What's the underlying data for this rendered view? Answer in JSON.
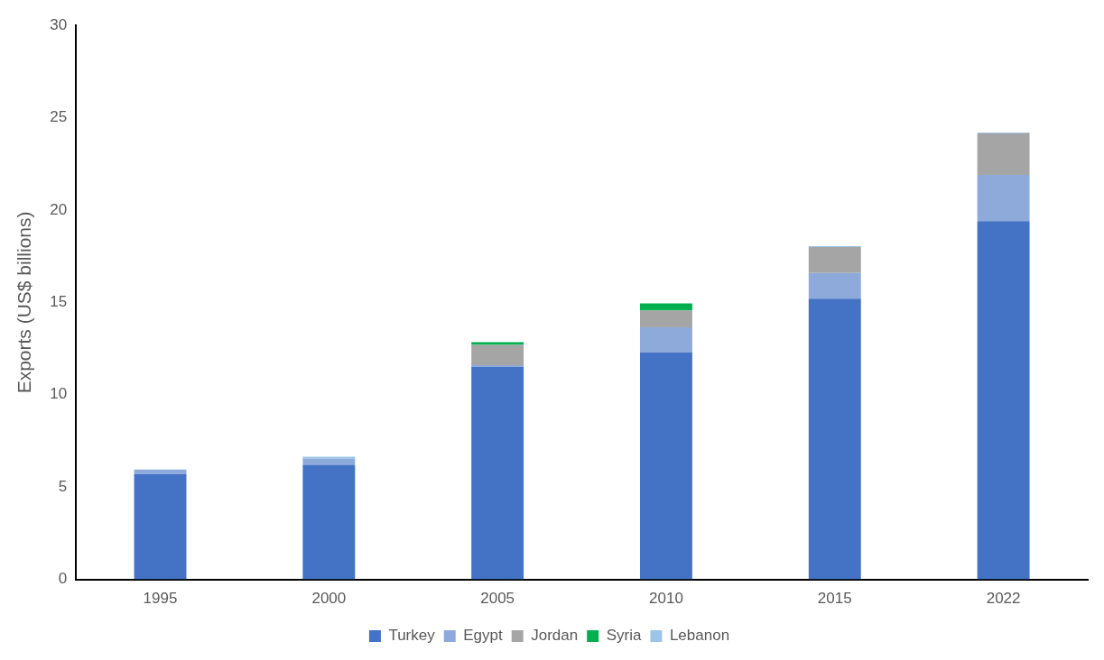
{
  "chart_data": {
    "type": "bar",
    "stacked": true,
    "ylabel": "Exports (US$ billions)",
    "categories": [
      "1995",
      "2000",
      "2005",
      "2010",
      "2015",
      "2022"
    ],
    "series": [
      {
        "name": "Turkey",
        "color": "#4472c4",
        "values": [
          5.7,
          6.2,
          11.5,
          12.3,
          15.2,
          19.4
        ]
      },
      {
        "name": "Egypt",
        "color": "#8eaadb",
        "values": [
          0.25,
          0.35,
          0.1,
          1.35,
          1.4,
          2.5
        ]
      },
      {
        "name": "Jordan",
        "color": "#a5a5a5",
        "values": [
          null,
          null,
          1.1,
          0.9,
          1.4,
          2.25
        ]
      },
      {
        "name": "Syria",
        "color": "#00b050",
        "values": [
          null,
          null,
          0.15,
          0.4,
          null,
          null
        ]
      },
      {
        "name": "Lebanon",
        "color": "#9dc3e6",
        "values": [
          null,
          0.1,
          null,
          null,
          0.05,
          0.05
        ]
      }
    ],
    "ylim": [
      0,
      30
    ],
    "yticks": [
      0,
      5,
      10,
      15,
      20,
      25,
      30
    ],
    "grid": false,
    "legend": "bottom"
  }
}
